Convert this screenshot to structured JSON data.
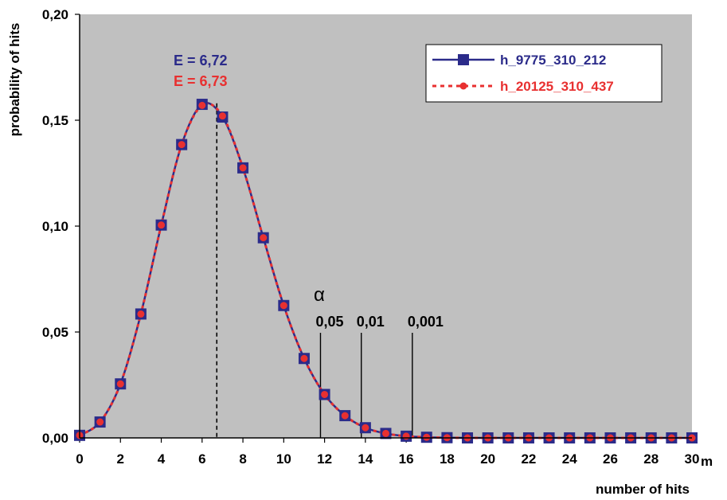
{
  "chart_data": {
    "type": "line",
    "xlabel": "number of hits",
    "x_unit_label": "m",
    "ylabel": "probability of hits",
    "xlim": [
      0,
      30
    ],
    "ylim": [
      0,
      0.2
    ],
    "x_ticks": [
      "0",
      "2",
      "4",
      "6",
      "8",
      "10",
      "12",
      "14",
      "16",
      "18",
      "20",
      "22",
      "24",
      "26",
      "28",
      "30"
    ],
    "y_ticks": [
      "0,00",
      "0,05",
      "0,10",
      "0,15",
      "0,20"
    ],
    "grid": false,
    "background": "#c0c0c0",
    "legend_position": "top-right",
    "x": [
      0,
      1,
      2,
      3,
      4,
      5,
      6,
      7,
      8,
      9,
      10,
      11,
      12,
      13,
      14,
      15,
      16,
      17,
      18,
      19,
      20,
      21,
      22,
      23,
      24,
      25,
      26,
      27,
      28,
      29,
      30
    ],
    "series": [
      {
        "name": "h_9775_310_212",
        "color": "#2b2b8a",
        "marker": "square",
        "line": "solid",
        "values": [
          0.0012,
          0.0075,
          0.0255,
          0.0585,
          0.1005,
          0.1385,
          0.1575,
          0.1515,
          0.1275,
          0.0945,
          0.0625,
          0.0375,
          0.0205,
          0.0105,
          0.0048,
          0.0021,
          0.0008,
          0.0003,
          0.0001,
          0,
          0,
          0,
          0,
          0,
          0,
          0,
          0,
          0,
          0,
          0,
          0
        ]
      },
      {
        "name": "h_20125_310_437",
        "color": "#e83030",
        "marker": "circle",
        "line": "dotted",
        "values": [
          0.0012,
          0.0075,
          0.0255,
          0.0585,
          0.1005,
          0.1385,
          0.157,
          0.152,
          0.1275,
          0.0945,
          0.0625,
          0.0375,
          0.0205,
          0.0105,
          0.0048,
          0.0021,
          0.0008,
          0.0003,
          0.0001,
          0,
          0,
          0,
          0,
          0,
          0,
          0,
          0,
          0,
          0,
          0,
          0
        ]
      }
    ],
    "annotations": {
      "expectation": {
        "x": 6.72,
        "label_1": "E = 6,72",
        "label_1_color": "#2b2b8a",
        "label_2": "E = 6,73",
        "label_2_color": "#e83030"
      },
      "alpha_symbol": "α",
      "thresholds": [
        {
          "x": 11.8,
          "label": "0,05"
        },
        {
          "x": 13.8,
          "label": "0,01"
        },
        {
          "x": 16.3,
          "label": "0,001"
        }
      ]
    }
  }
}
